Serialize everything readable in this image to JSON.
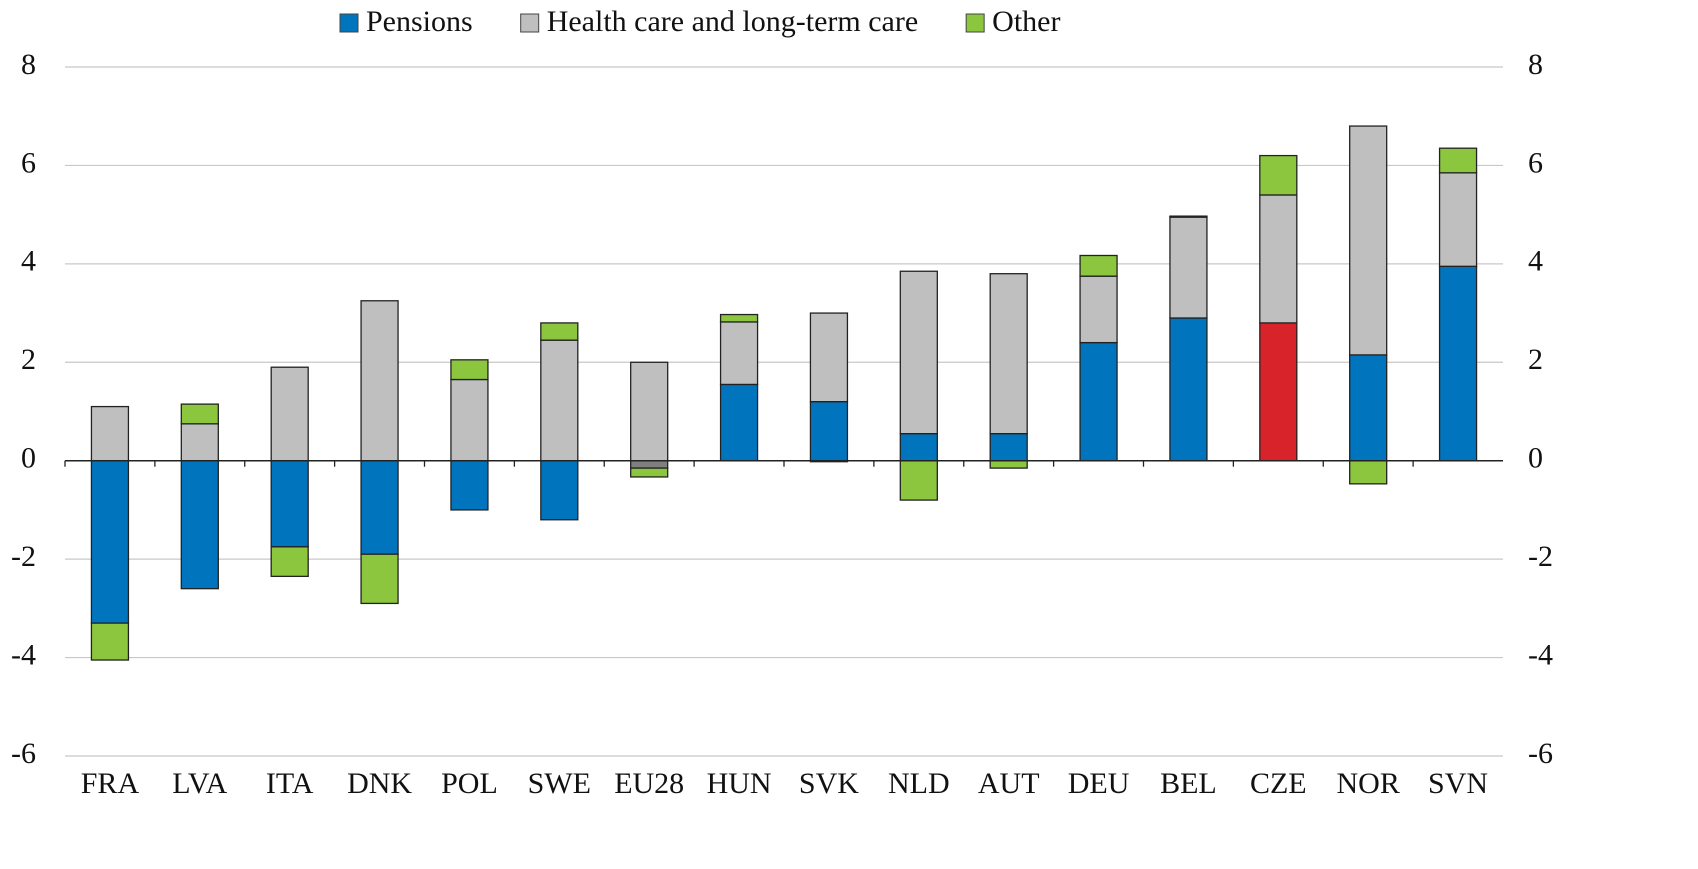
{
  "chart_data": {
    "type": "bar",
    "stacked": true,
    "categories": [
      "FRA",
      "LVA",
      "ITA",
      "DNK",
      "POL",
      "SWE",
      "EU28",
      "HUN",
      "SVK",
      "NLD",
      "AUT",
      "DEU",
      "BEL",
      "CZE",
      "NOR",
      "SVN"
    ],
    "series": [
      {
        "name": "Pensions",
        "color": "#0075be",
        "point_colors": [
          "#0075be",
          "#0075be",
          "#0075be",
          "#0075be",
          "#0075be",
          "#0075be",
          "#7f7f7f",
          "#0075be",
          "#0075be",
          "#0075be",
          "#0075be",
          "#0075be",
          "#0075be",
          "#d9232b",
          "#0075be",
          "#0075be"
        ],
        "values": [
          -3.3,
          -2.6,
          -1.75,
          -1.9,
          -1.0,
          -1.2,
          -0.15,
          1.55,
          1.2,
          0.55,
          0.55,
          2.4,
          2.9,
          2.8,
          2.15,
          3.95
        ]
      },
      {
        "name": "Health care and long-term care",
        "color": "#bfbfbf",
        "values": [
          1.1,
          0.75,
          1.9,
          3.25,
          1.65,
          2.45,
          2.0,
          1.27,
          1.8,
          3.3,
          3.25,
          1.35,
          2.05,
          2.6,
          4.65,
          1.9
        ]
      },
      {
        "name": "Other",
        "color": "#8cc63f",
        "values": [
          -0.75,
          0.4,
          -0.6,
          -1.0,
          0.4,
          0.35,
          -0.18,
          0.15,
          -0.02,
          -0.8,
          -0.15,
          0.42,
          0.02,
          0.8,
          -0.47,
          0.5
        ]
      }
    ],
    "ylim": [
      -6,
      8
    ],
    "yticks": [
      -6,
      -4,
      -2,
      0,
      2,
      4,
      6,
      8
    ],
    "y2lim": [
      -6,
      8
    ],
    "y2ticks": [
      -6,
      -4,
      -2,
      0,
      2,
      4,
      6,
      8
    ],
    "grid": true,
    "legend": "top"
  }
}
